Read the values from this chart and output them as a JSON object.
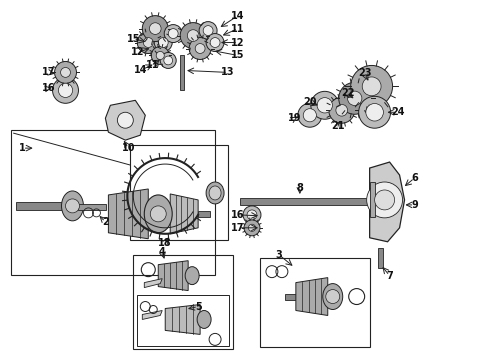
{
  "background_color": "#ffffff",
  "fig_width": 4.9,
  "fig_height": 3.6,
  "dpi": 100,
  "lc": "#222222",
  "gc": "#999999",
  "gc2": "#bbbbbb",
  "fs": 6.5,
  "boxes": {
    "b1": [
      0.02,
      0.36,
      0.43,
      0.38
    ],
    "b18": [
      0.275,
      0.35,
      0.19,
      0.2
    ],
    "b3": [
      0.525,
      0.045,
      0.21,
      0.23
    ],
    "b4": [
      0.27,
      0.045,
      0.2,
      0.24
    ]
  }
}
